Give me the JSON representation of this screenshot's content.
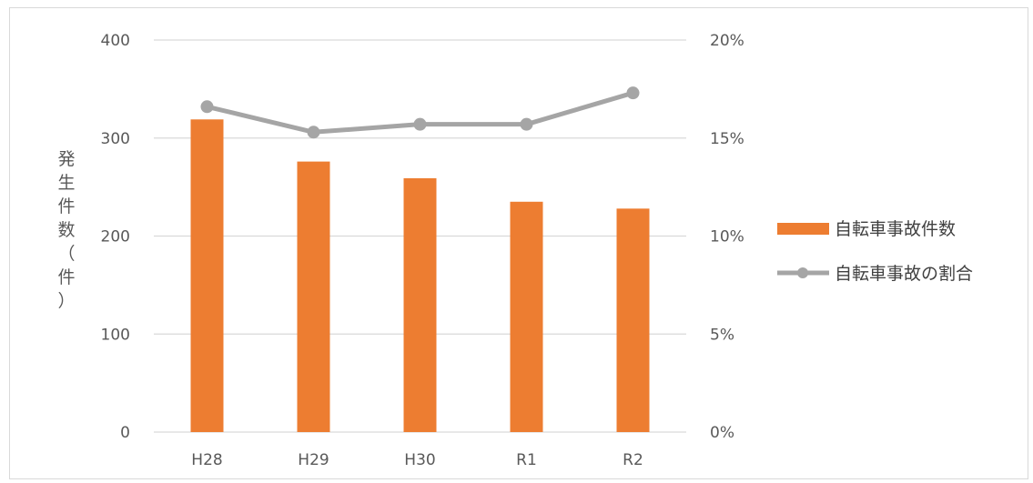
{
  "chart_data": {
    "type": "bar",
    "categories": [
      "H28",
      "H29",
      "H30",
      "R1",
      "R2"
    ],
    "series": [
      {
        "name": "自転車事故件数",
        "type": "bar",
        "axis": "left",
        "color": "#ED7D31",
        "values": [
          319,
          276,
          259,
          235,
          228
        ]
      },
      {
        "name": "自転車事故の割合",
        "type": "line",
        "axis": "right",
        "color": "#A5A5A5",
        "values": [
          16.6,
          15.3,
          15.7,
          15.7,
          17.3
        ]
      }
    ],
    "ylabel": "発生件数（件）",
    "ylim": [
      0,
      400
    ],
    "yticks": [
      "0",
      "100",
      "200",
      "300",
      "400"
    ],
    "y2lim": [
      0,
      20
    ],
    "y2ticks": [
      "0%",
      "5%",
      "10%",
      "15%",
      "20%"
    ],
    "grid": true,
    "legend": "right"
  }
}
